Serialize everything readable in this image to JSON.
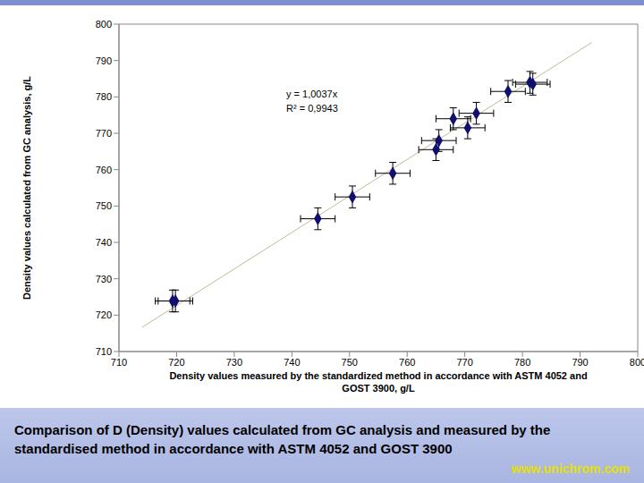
{
  "chart_data": {
    "type": "scatter",
    "x_label": "Density values measured by the standardized method in accordance with ASTM 4052 and GOST 3900, g/L",
    "y_label": "Density values calculated from GC analysis, g/L",
    "xlim": [
      710,
      800
    ],
    "ylim": [
      710,
      800
    ],
    "xticks": [
      710,
      720,
      730,
      740,
      750,
      760,
      770,
      780,
      790,
      800
    ],
    "yticks": [
      710,
      720,
      730,
      740,
      750,
      760,
      770,
      780,
      790,
      800
    ],
    "grid": false,
    "color": "#10106e",
    "marker": "diamond",
    "x": [
      719.3,
      719.8,
      744.5,
      750.5,
      757.5,
      765.0,
      765.5,
      768.0,
      770.5,
      772.0,
      777.5,
      781.3,
      781.8
    ],
    "values": [
      723.9,
      723.9,
      746.5,
      752.5,
      759.0,
      765.5,
      768.0,
      774.0,
      771.5,
      775.5,
      781.5,
      784.0,
      783.5
    ],
    "x_error": [
      3,
      3,
      3,
      3,
      3,
      3,
      3,
      3,
      3,
      3,
      3,
      3,
      3
    ],
    "y_error": [
      3,
      3,
      3,
      3,
      3,
      3,
      3,
      3,
      3,
      3,
      3,
      3,
      3
    ],
    "trendline": {
      "slope": 1.0037,
      "label": "y = 1,0037x",
      "r2": 0.9943,
      "r2_label": "R² = 0,9943",
      "x": [
        714,
        792
      ],
      "color": "#c8b898"
    }
  },
  "caption": "Comparison of D (Density) values calculated from GC analysis and measured by the standardised method in accordance with ASTM 4052 and GOST 3900",
  "footer": "www.unichrom.com"
}
